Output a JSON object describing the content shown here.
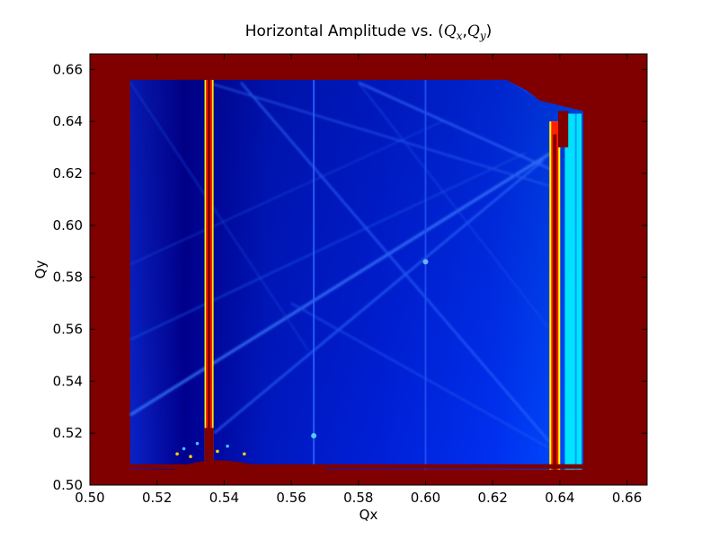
{
  "chart_data": {
    "type": "heatmap",
    "title": "Horizontal Amplitude vs. (",
    "title_math": {
      "var1": "Q",
      "sub1": "x",
      "sep": ",",
      "var2": "Q",
      "sub2": "y",
      "close": ")"
    },
    "xlabel": "Qx",
    "ylabel": "Qy",
    "xlim": [
      0.5,
      0.666
    ],
    "ylim": [
      0.5,
      0.666
    ],
    "xticks": [
      0.5,
      0.52,
      0.54,
      0.56,
      0.58,
      0.6,
      0.62,
      0.64,
      0.66
    ],
    "yticks": [
      0.5,
      0.52,
      0.54,
      0.56,
      0.58,
      0.6,
      0.62,
      0.64,
      0.66
    ],
    "xtick_labels": [
      "0.50",
      "0.52",
      "0.54",
      "0.56",
      "0.58",
      "0.60",
      "0.62",
      "0.64",
      "0.66"
    ],
    "ytick_labels": [
      "0.50",
      "0.52",
      "0.54",
      "0.56",
      "0.58",
      "0.60",
      "0.62",
      "0.64",
      "0.66"
    ],
    "colormap": "jet",
    "colors": {
      "saturated": "#800000",
      "low": "#00008f",
      "mid": "#0040ff",
      "high": "#00ffff",
      "peak": "#ffff00",
      "hot": "#ff2000"
    },
    "scan_region": {
      "qx": [
        0.512,
        0.647
      ],
      "qy": [
        0.506,
        0.656
      ]
    },
    "vertical_resonances_qx": [
      0.5355,
      0.5667,
      0.6,
      0.6385,
      0.645
    ],
    "saturated_band_qy": 0.507
  }
}
